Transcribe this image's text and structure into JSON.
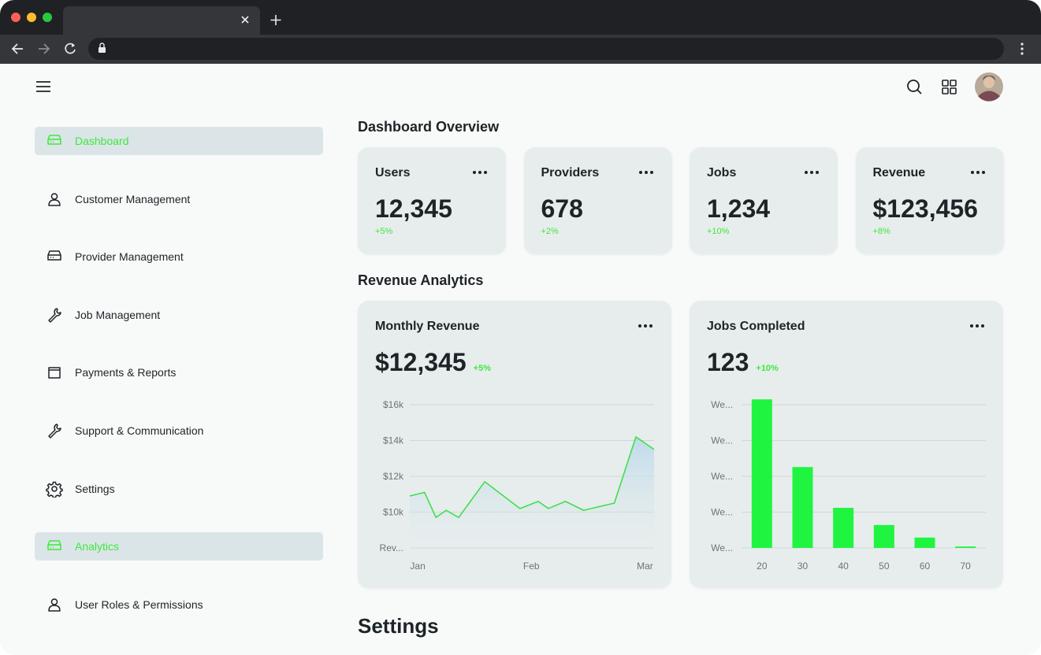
{
  "sidebar": {
    "items": [
      {
        "label": "Dashboard",
        "active": true
      },
      {
        "label": "Customer Management",
        "active": false
      },
      {
        "label": "Provider Management",
        "active": false
      },
      {
        "label": "Job Management",
        "active": false
      },
      {
        "label": "Payments & Reports",
        "active": false
      },
      {
        "label": "Support & Communication",
        "active": false
      },
      {
        "label": "Settings",
        "active": false
      },
      {
        "label": "Analytics",
        "active": true
      },
      {
        "label": "User Roles & Permissions",
        "active": false
      }
    ]
  },
  "overview": {
    "title": "Dashboard Overview",
    "stats": [
      {
        "label": "Users",
        "value": "12,345",
        "change": "+5%"
      },
      {
        "label": "Providers",
        "value": "678",
        "change": "+2%"
      },
      {
        "label": "Jobs",
        "value": "1,234",
        "change": "+10%"
      },
      {
        "label": "Revenue",
        "value": "$123,456",
        "change": "+8%"
      }
    ]
  },
  "analytics": {
    "title": "Revenue Analytics",
    "cards": [
      {
        "value": "$12,345",
        "change": "+5%"
      },
      {
        "value": "123",
        "change": "+10%"
      }
    ]
  },
  "settings": {
    "title": "Settings"
  },
  "chart_data": [
    {
      "type": "line",
      "title": "Monthly Revenue",
      "x": [
        -0.07,
        0.06,
        0.16,
        0.25,
        0.36,
        0.59,
        0.9,
        1.06,
        1.15,
        1.3,
        1.46,
        1.73,
        1.92,
        2.08
      ],
      "values": [
        10900,
        11100,
        9700,
        10100,
        9700,
        11700,
        10200,
        10600,
        10200,
        10600,
        10100,
        10500,
        14200,
        13500
      ],
      "color": "#3ee04a",
      "xlim": [
        -0.07,
        2.08
      ],
      "xticks": [
        {
          "value": 0,
          "label": "Jan"
        },
        {
          "value": 1,
          "label": "Feb"
        },
        {
          "value": 2,
          "label": "Mar"
        }
      ],
      "ylim": [
        8000,
        16000
      ],
      "yticks": [
        {
          "value": 16000,
          "label": "$16k"
        },
        {
          "value": 14000,
          "label": "$14k"
        },
        {
          "value": 12000,
          "label": "$12k"
        },
        {
          "value": 10000,
          "label": "$10k"
        },
        {
          "value": 8000,
          "label": "Rev..."
        }
      ],
      "grid": true
    },
    {
      "type": "bar",
      "title": "Jobs Completed",
      "categories": [
        "20",
        "30",
        "40",
        "50",
        "60",
        "70"
      ],
      "values": [
        41.5,
        22.6,
        11.2,
        6.4,
        2.9,
        0.4
      ],
      "color": "#1ff540",
      "ylim": [
        0,
        42
      ],
      "yticks": [
        {
          "value": 40,
          "label": "We..."
        },
        {
          "value": 30,
          "label": "We..."
        },
        {
          "value": 20,
          "label": "We..."
        },
        {
          "value": 10,
          "label": "We..."
        },
        {
          "value": 0,
          "label": "We..."
        }
      ],
      "grid": true
    }
  ]
}
